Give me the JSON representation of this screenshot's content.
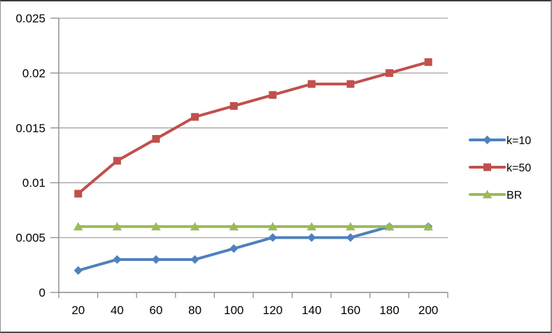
{
  "chart_data": {
    "type": "line",
    "title": "",
    "xlabel": "",
    "ylabel": "",
    "categories": [
      20,
      40,
      60,
      80,
      100,
      120,
      140,
      160,
      180,
      200
    ],
    "x_tick_labels": [
      "20",
      "40",
      "60",
      "80",
      "100",
      "120",
      "140",
      "160",
      "180",
      "200"
    ],
    "series": [
      {
        "name": "k=10",
        "marker": "diamond",
        "color": "#4F81BD",
        "values": [
          0.002,
          0.003,
          0.003,
          0.003,
          0.004,
          0.005,
          0.005,
          0.005,
          0.006,
          0.006
        ]
      },
      {
        "name": "k=50",
        "marker": "square",
        "color": "#C0504D",
        "values": [
          0.009,
          0.012,
          0.014,
          0.016,
          0.017,
          0.018,
          0.019,
          0.019,
          0.02,
          0.021
        ]
      },
      {
        "name": "BR",
        "marker": "triangle",
        "color": "#9BBB59",
        "values": [
          0.006,
          0.006,
          0.006,
          0.006,
          0.006,
          0.006,
          0.006,
          0.006,
          0.006,
          0.006
        ]
      }
    ],
    "ylim": [
      0,
      0.025
    ],
    "ytick_step": 0.005,
    "y_tick_labels": [
      "0",
      "0.005",
      "0.01",
      "0.015",
      "0.02",
      "0.025"
    ],
    "grid": true,
    "legend_position": "right",
    "legend_entries": [
      "k=10",
      "k=50",
      "BR"
    ],
    "colors": {
      "gridline": "#A3A3A3",
      "axis": "#8C8C8C",
      "text": "#000000",
      "background": "#FFFFFF"
    }
  }
}
